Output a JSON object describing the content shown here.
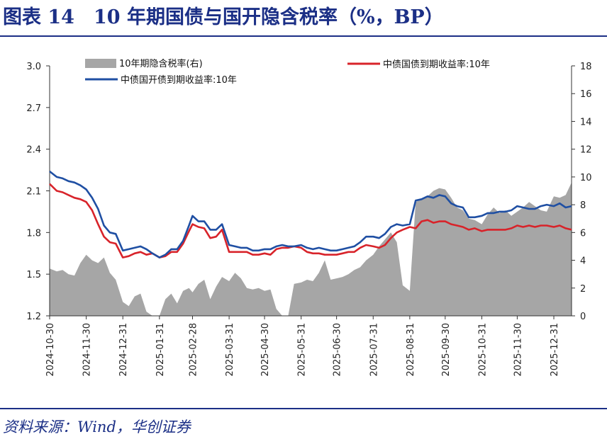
{
  "figure": {
    "title": "图表 14　10 年期国债与国开隐含税率（%，BP）",
    "source": "资料来源：Wind，华创证券"
  },
  "chart_data": {
    "type": "line",
    "title": "",
    "y_left": {
      "ylim": [
        1.2,
        3.0
      ],
      "ticks": [
        "1.2",
        "1.5",
        "1.8",
        "2.1",
        "2.4",
        "2.7",
        "3.0"
      ]
    },
    "y_right": {
      "ylim": [
        0,
        18
      ],
      "ticks": [
        "0",
        "2",
        "4",
        "6",
        "8",
        "10",
        "12",
        "14",
        "16",
        "18"
      ]
    },
    "x_ticks": [
      "2024-10-30",
      "2024-11-30",
      "2024-12-31",
      "2025-01-31",
      "2025-02-28",
      "2025-03-31",
      "2025-04-30",
      "2025-05-31",
      "2025-06-30",
      "2025-07-31",
      "2025-08-31",
      "2025-09-30",
      "2025-10-31",
      "2025-11-30",
      "2025-12-31"
    ],
    "legend_position": "top",
    "grid": false,
    "series": [
      {
        "name": "10年期隐含税率(右)",
        "type": "area",
        "axis": "right",
        "color": "#a6a6a6",
        "x": [
          "2024-10-30",
          "2024-11-05",
          "2024-11-10",
          "2024-11-15",
          "2024-11-20",
          "2024-11-25",
          "2024-11-30",
          "2024-12-05",
          "2024-12-10",
          "2024-12-15",
          "2024-12-20",
          "2024-12-25",
          "2024-12-31",
          "2025-01-05",
          "2025-01-10",
          "2025-01-15",
          "2025-01-20",
          "2025-01-25",
          "2025-01-31",
          "2025-02-05",
          "2025-02-10",
          "2025-02-15",
          "2025-02-20",
          "2025-02-25",
          "2025-02-28",
          "2025-03-05",
          "2025-03-10",
          "2025-03-15",
          "2025-03-20",
          "2025-03-25",
          "2025-03-31",
          "2025-04-05",
          "2025-04-10",
          "2025-04-15",
          "2025-04-20",
          "2025-04-25",
          "2025-04-30",
          "2025-05-05",
          "2025-05-10",
          "2025-05-15",
          "2025-05-20",
          "2025-05-25",
          "2025-05-31",
          "2025-06-05",
          "2025-06-10",
          "2025-06-15",
          "2025-06-20",
          "2025-06-25",
          "2025-06-30",
          "2025-07-05",
          "2025-07-10",
          "2025-07-15",
          "2025-07-20",
          "2025-07-25",
          "2025-07-31",
          "2025-08-05",
          "2025-08-10",
          "2025-08-15",
          "2025-08-20",
          "2025-08-25",
          "2025-08-31",
          "2025-09-05",
          "2025-09-10",
          "2025-09-15",
          "2025-09-20",
          "2025-09-25",
          "2025-09-30",
          "2025-10-05",
          "2025-10-10",
          "2025-10-15",
          "2025-10-20",
          "2025-10-25",
          "2025-10-31",
          "2025-11-05",
          "2025-11-10",
          "2025-11-15",
          "2025-11-20",
          "2025-11-25",
          "2025-11-30",
          "2025-12-05",
          "2025-12-10",
          "2025-12-15",
          "2025-12-20",
          "2025-12-25",
          "2025-12-31",
          "2026-01-05",
          "2026-01-10",
          "2026-01-15"
        ],
        "values": [
          3.4,
          3.2,
          3.3,
          3.0,
          2.9,
          3.8,
          4.4,
          4.0,
          3.8,
          4.2,
          3.1,
          2.6,
          1.0,
          0.7,
          1.4,
          1.6,
          0.3,
          0.0,
          0.0,
          1.2,
          1.6,
          0.9,
          1.8,
          2.0,
          1.7,
          2.3,
          2.6,
          1.2,
          2.1,
          2.8,
          2.5,
          3.1,
          2.7,
          2.0,
          1.9,
          2.0,
          1.8,
          1.9,
          0.5,
          0.0,
          0.0,
          2.3,
          2.4,
          2.6,
          2.5,
          3.1,
          4.0,
          2.6,
          2.7,
          2.8,
          3.0,
          3.3,
          3.5,
          4.0,
          4.4,
          5.0,
          5.5,
          6.0,
          5.3,
          2.2,
          1.8,
          8.2,
          8.4,
          8.6,
          9.0,
          9.2,
          9.1,
          8.5,
          7.8,
          7.6,
          7.0,
          6.9,
          6.6,
          7.3,
          7.8,
          7.4,
          7.6,
          7.2,
          7.5,
          7.8,
          8.2,
          7.9,
          7.6,
          7.5,
          8.6,
          8.5,
          8.7,
          9.6
        ]
      },
      {
        "name": "中债国债到期收益率:10年",
        "type": "line",
        "axis": "left",
        "color": "#d8232a",
        "x": [
          "2024-10-30",
          "2024-11-05",
          "2024-11-10",
          "2024-11-15",
          "2024-11-20",
          "2024-11-25",
          "2024-11-30",
          "2024-12-05",
          "2024-12-10",
          "2024-12-15",
          "2024-12-20",
          "2024-12-25",
          "2024-12-31",
          "2025-01-05",
          "2025-01-10",
          "2025-01-15",
          "2025-01-20",
          "2025-01-25",
          "2025-01-31",
          "2025-02-05",
          "2025-02-10",
          "2025-02-15",
          "2025-02-20",
          "2025-02-25",
          "2025-02-28",
          "2025-03-05",
          "2025-03-10",
          "2025-03-15",
          "2025-03-20",
          "2025-03-25",
          "2025-03-31",
          "2025-04-05",
          "2025-04-10",
          "2025-04-15",
          "2025-04-20",
          "2025-04-25",
          "2025-04-30",
          "2025-05-05",
          "2025-05-10",
          "2025-05-15",
          "2025-05-20",
          "2025-05-25",
          "2025-05-31",
          "2025-06-05",
          "2025-06-10",
          "2025-06-15",
          "2025-06-20",
          "2025-06-25",
          "2025-06-30",
          "2025-07-05",
          "2025-07-10",
          "2025-07-15",
          "2025-07-20",
          "2025-07-25",
          "2025-07-31",
          "2025-08-05",
          "2025-08-10",
          "2025-08-15",
          "2025-08-20",
          "2025-08-25",
          "2025-08-31",
          "2025-09-05",
          "2025-09-10",
          "2025-09-15",
          "2025-09-20",
          "2025-09-25",
          "2025-09-30",
          "2025-10-05",
          "2025-10-10",
          "2025-10-15",
          "2025-10-20",
          "2025-10-25",
          "2025-10-31",
          "2025-11-05",
          "2025-11-10",
          "2025-11-15",
          "2025-11-20",
          "2025-11-25",
          "2025-11-30",
          "2025-12-05",
          "2025-12-10",
          "2025-12-15",
          "2025-12-20",
          "2025-12-25",
          "2025-12-31",
          "2026-01-05",
          "2026-01-10",
          "2026-01-15"
        ],
        "values": [
          2.15,
          2.1,
          2.09,
          2.07,
          2.05,
          2.04,
          2.02,
          1.96,
          1.86,
          1.77,
          1.73,
          1.72,
          1.62,
          1.63,
          1.65,
          1.66,
          1.64,
          1.65,
          1.62,
          1.63,
          1.66,
          1.66,
          1.72,
          1.81,
          1.86,
          1.84,
          1.83,
          1.76,
          1.77,
          1.82,
          1.66,
          1.66,
          1.66,
          1.66,
          1.64,
          1.64,
          1.65,
          1.64,
          1.68,
          1.69,
          1.69,
          1.7,
          1.69,
          1.66,
          1.65,
          1.65,
          1.64,
          1.64,
          1.64,
          1.65,
          1.66,
          1.66,
          1.69,
          1.71,
          1.7,
          1.69,
          1.71,
          1.76,
          1.8,
          1.82,
          1.84,
          1.83,
          1.88,
          1.89,
          1.87,
          1.88,
          1.88,
          1.86,
          1.85,
          1.84,
          1.82,
          1.83,
          1.81,
          1.82,
          1.82,
          1.82,
          1.82,
          1.83,
          1.85,
          1.84,
          1.85,
          1.84,
          1.85,
          1.85,
          1.84,
          1.85,
          1.83,
          1.82
        ]
      },
      {
        "name": "中债国开债到期收益率:10年",
        "type": "line",
        "axis": "left",
        "color": "#1f4fa3",
        "x": [
          "2024-10-30",
          "2024-11-05",
          "2024-11-10",
          "2024-11-15",
          "2024-11-20",
          "2024-11-25",
          "2024-11-30",
          "2024-12-05",
          "2024-12-10",
          "2024-12-15",
          "2024-12-20",
          "2024-12-25",
          "2024-12-31",
          "2025-01-05",
          "2025-01-10",
          "2025-01-15",
          "2025-01-20",
          "2025-01-25",
          "2025-01-31",
          "2025-02-05",
          "2025-02-10",
          "2025-02-15",
          "2025-02-20",
          "2025-02-25",
          "2025-02-28",
          "2025-03-05",
          "2025-03-10",
          "2025-03-15",
          "2025-03-20",
          "2025-03-25",
          "2025-03-31",
          "2025-04-05",
          "2025-04-10",
          "2025-04-15",
          "2025-04-20",
          "2025-04-25",
          "2025-04-30",
          "2025-05-05",
          "2025-05-10",
          "2025-05-15",
          "2025-05-20",
          "2025-05-25",
          "2025-05-31",
          "2025-06-05",
          "2025-06-10",
          "2025-06-15",
          "2025-06-20",
          "2025-06-25",
          "2025-06-30",
          "2025-07-05",
          "2025-07-10",
          "2025-07-15",
          "2025-07-20",
          "2025-07-25",
          "2025-07-31",
          "2025-08-05",
          "2025-08-10",
          "2025-08-15",
          "2025-08-20",
          "2025-08-25",
          "2025-08-31",
          "2025-09-05",
          "2025-09-10",
          "2025-09-15",
          "2025-09-20",
          "2025-09-25",
          "2025-09-30",
          "2025-10-05",
          "2025-10-10",
          "2025-10-15",
          "2025-10-20",
          "2025-10-25",
          "2025-10-31",
          "2025-11-05",
          "2025-11-10",
          "2025-11-15",
          "2025-11-20",
          "2025-11-25",
          "2025-11-30",
          "2025-12-05",
          "2025-12-10",
          "2025-12-15",
          "2025-12-20",
          "2025-12-25",
          "2025-12-31",
          "2026-01-05",
          "2026-01-10",
          "2026-01-15"
        ],
        "values": [
          2.24,
          2.2,
          2.19,
          2.17,
          2.16,
          2.14,
          2.11,
          2.05,
          1.97,
          1.85,
          1.8,
          1.79,
          1.67,
          1.68,
          1.69,
          1.7,
          1.68,
          1.65,
          1.62,
          1.64,
          1.68,
          1.68,
          1.74,
          1.85,
          1.92,
          1.88,
          1.88,
          1.82,
          1.82,
          1.86,
          1.71,
          1.7,
          1.69,
          1.69,
          1.67,
          1.67,
          1.68,
          1.68,
          1.7,
          1.71,
          1.7,
          1.7,
          1.71,
          1.69,
          1.68,
          1.69,
          1.68,
          1.67,
          1.67,
          1.68,
          1.69,
          1.7,
          1.73,
          1.77,
          1.77,
          1.76,
          1.79,
          1.84,
          1.86,
          1.85,
          1.86,
          2.03,
          2.04,
          2.06,
          2.05,
          2.07,
          2.06,
          2.01,
          1.99,
          1.98,
          1.91,
          1.91,
          1.92,
          1.94,
          1.94,
          1.95,
          1.95,
          1.96,
          1.99,
          1.98,
          1.97,
          1.97,
          1.99,
          2.0,
          1.99,
          2.01,
          1.98,
          1.99
        ]
      }
    ]
  }
}
